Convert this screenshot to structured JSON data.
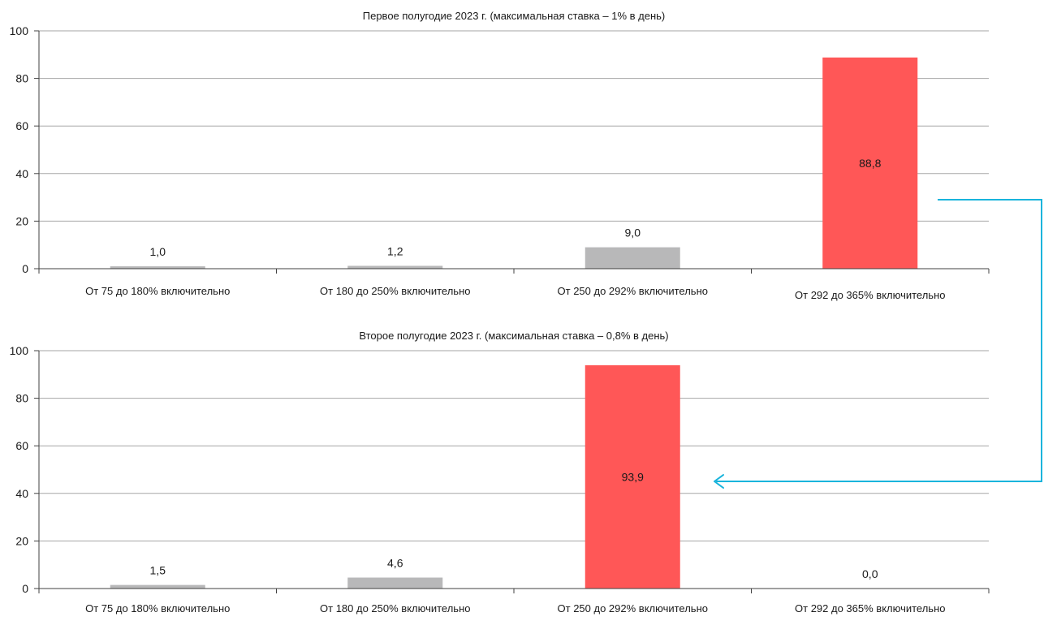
{
  "chart_data": [
    {
      "type": "bar",
      "title": "Первое полугодие 2023 г. (максимальная ставка – 1% в день)",
      "categories": [
        "От 75 до 180% включительно",
        "От 180 до 250% включительно",
        "От 250 до 292% включительно",
        "От 292 до 365% включительно"
      ],
      "values": [
        1.0,
        1.2,
        9.0,
        88.8
      ],
      "value_labels": [
        "1,0",
        "1,2",
        "9,0",
        "88,8"
      ],
      "highlight_index": 3,
      "ylim": [
        0,
        100
      ],
      "yticks": [
        "0",
        "20",
        "40",
        "60",
        "80",
        "100"
      ],
      "grid": true,
      "xlabel": "",
      "ylabel": ""
    },
    {
      "type": "bar",
      "title": "Второе полугодие 2023 г. (максимальная ставка – 0,8% в день)",
      "categories": [
        "От 75 до 180% включительно",
        "От 180 до 250% включительно",
        "От 250 до 292% включительно",
        "От 292 до 365% включительно"
      ],
      "values": [
        1.5,
        4.6,
        93.9,
        0.0
      ],
      "value_labels": [
        "1,5",
        "4,6",
        "93,9",
        "0,0"
      ],
      "highlight_index": 2,
      "ylim": [
        0,
        100
      ],
      "yticks": [
        "0",
        "20",
        "40",
        "60",
        "80",
        "100"
      ],
      "grid": true,
      "xlabel": "",
      "ylabel": ""
    }
  ],
  "colors": {
    "bar": "#b8b8b9",
    "highlight": "#ff5757",
    "grid": "#a6a6a6",
    "axis": "#404040",
    "arrow": "#19b4dc"
  }
}
